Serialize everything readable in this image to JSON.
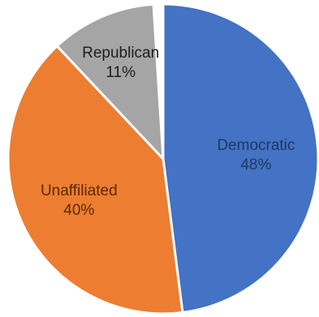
{
  "chart_data": {
    "type": "pie",
    "slices": [
      {
        "label": "Democratic",
        "value": 48,
        "value_label": "48%",
        "color": "#4472C4",
        "text_color": "#1F3864"
      },
      {
        "label": "Unaffiliated",
        "value": 40,
        "value_label": "40%",
        "color": "#ED7D31",
        "text_color": "#5A2A05"
      },
      {
        "label": "Republican",
        "value": 11,
        "value_label": "11%",
        "color": "#A5A5A5",
        "text_color": "#1E1E1E"
      }
    ],
    "start": "12 o'clock",
    "direction": "clockwise",
    "legend": "none"
  }
}
